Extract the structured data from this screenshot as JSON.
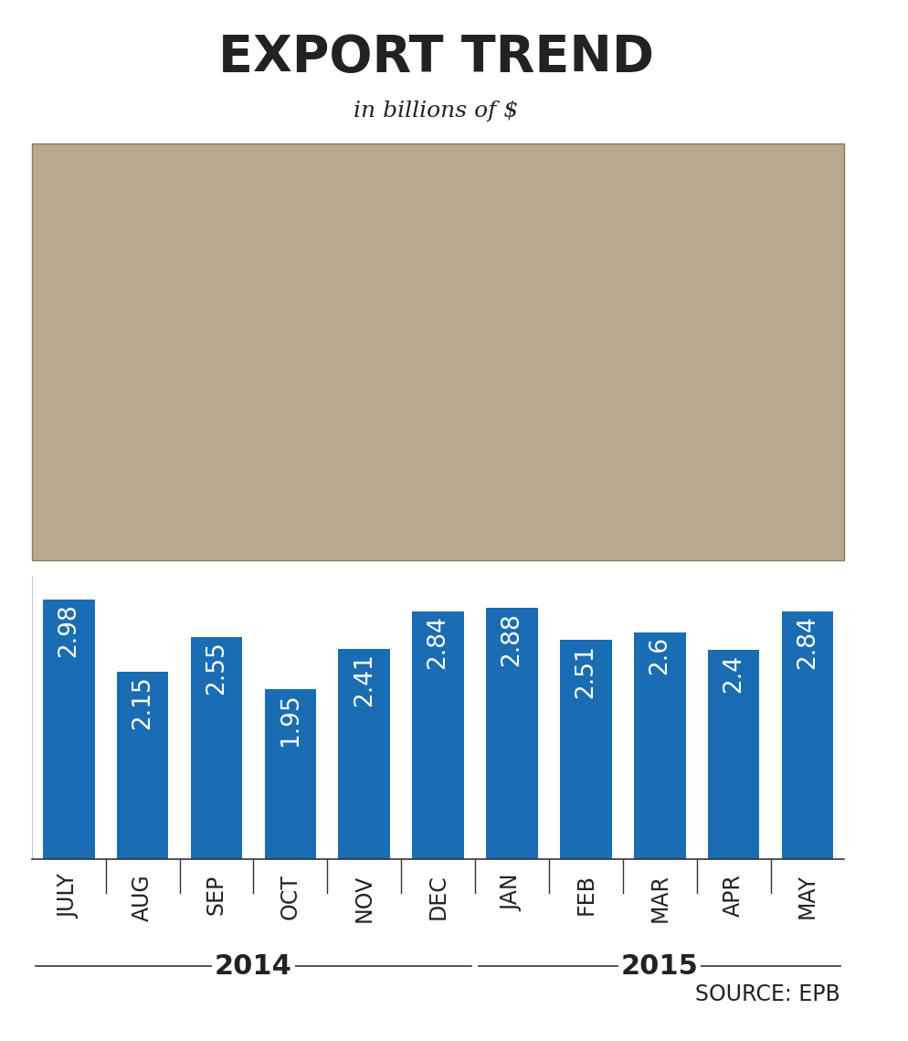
{
  "chart_data": {
    "type": "bar",
    "title": "EXPORT TREND",
    "subtitle": "in billions of $",
    "categories": [
      "JULY",
      "AUG",
      "SEP",
      "OCT",
      "NOV",
      "DEC",
      "JAN",
      "FEB",
      "MAR",
      "APR",
      "MAY"
    ],
    "values": [
      2.98,
      2.15,
      2.55,
      1.95,
      2.41,
      2.84,
      2.88,
      2.51,
      2.6,
      2.4,
      2.84
    ],
    "color": "#1b6db3",
    "ylim": [
      0,
      3.25
    ],
    "yticks": [],
    "tick_labels": "x",
    "data_labels": true,
    "grid": false,
    "x_groups": [
      {
        "label": "2014",
        "from": "JULY",
        "to": "DEC"
      },
      {
        "label": "2015",
        "from": "JAN",
        "to": "MAY"
      }
    ],
    "source": "SOURCE: EPB"
  }
}
